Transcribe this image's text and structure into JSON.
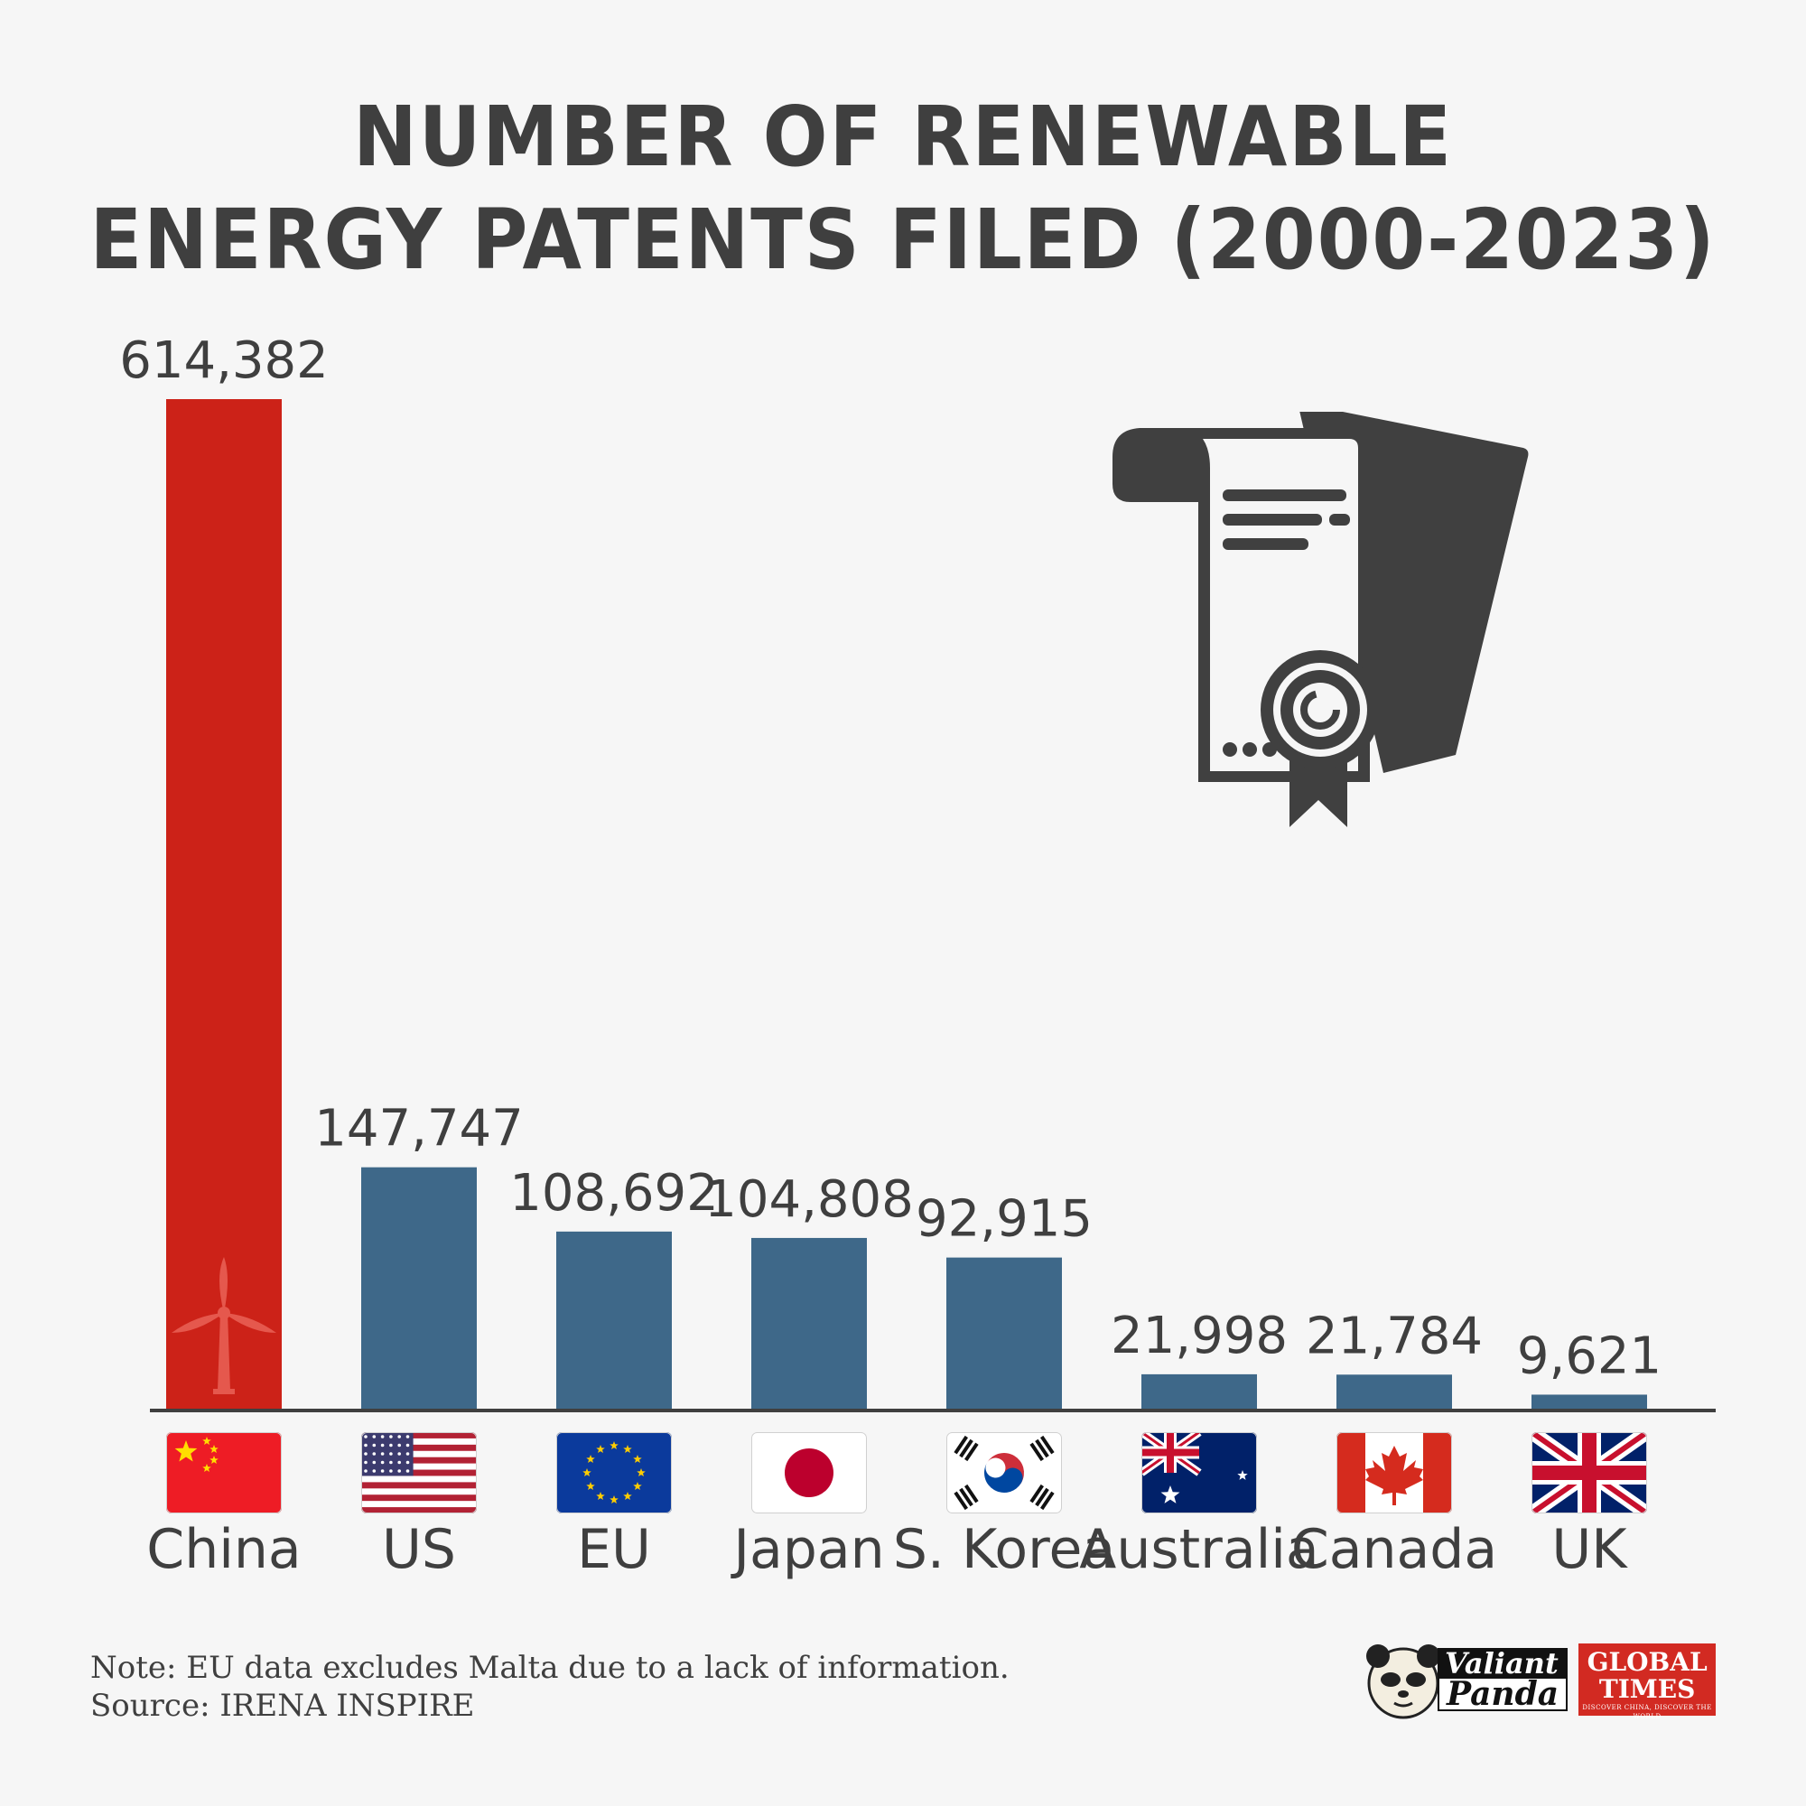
{
  "title": {
    "line1": "NUMBER OF RENEWABLE",
    "line2": "ENERGY PATENTS FILED (2000-2023)"
  },
  "chart_data": {
    "type": "bar",
    "title": "NUMBER OF RENEWABLE ENERGY PATENTS FILED (2000-2023)",
    "categories": [
      "China",
      "US",
      "EU",
      "Japan",
      "S. Korea",
      "Australia",
      "Canada",
      "UK"
    ],
    "values": [
      614382,
      147747,
      108692,
      104808,
      92915,
      21998,
      21784,
      9621
    ],
    "value_labels": [
      "614,382",
      "147,747",
      "108,692",
      "104,808",
      "92,915",
      "21,998",
      "21,784",
      "9,621"
    ],
    "flags": [
      "china-flag",
      "us-flag",
      "eu-flag",
      "japan-flag",
      "south-korea-flag",
      "australia-flag",
      "canada-flag",
      "uk-flag"
    ],
    "bar_colors": [
      "#cc2218",
      "#3e6889",
      "#3e6889",
      "#3e6889",
      "#3e6889",
      "#3e6889",
      "#3e6889",
      "#3e6889"
    ],
    "highlight_icon": "wind-turbine-icon",
    "xlabel": "",
    "ylabel": "",
    "ylim": [
      0,
      614382
    ],
    "grid": false,
    "legend": "none"
  },
  "decor": {
    "main_icon": "patent-certificate-icon",
    "icon_color": "#404040"
  },
  "footnote": {
    "note": "Note: EU data excludes Malta due to a lack of information.",
    "source": "Source: IRENA INSPIRE"
  },
  "logos": {
    "valiant_top": "Valiant",
    "valiant_bottom": "Panda",
    "global_times_line1": "GLOBAL",
    "global_times_line2": "TIMES",
    "global_times_tagline": "DISCOVER CHINA, DISCOVER THE WORLD"
  }
}
